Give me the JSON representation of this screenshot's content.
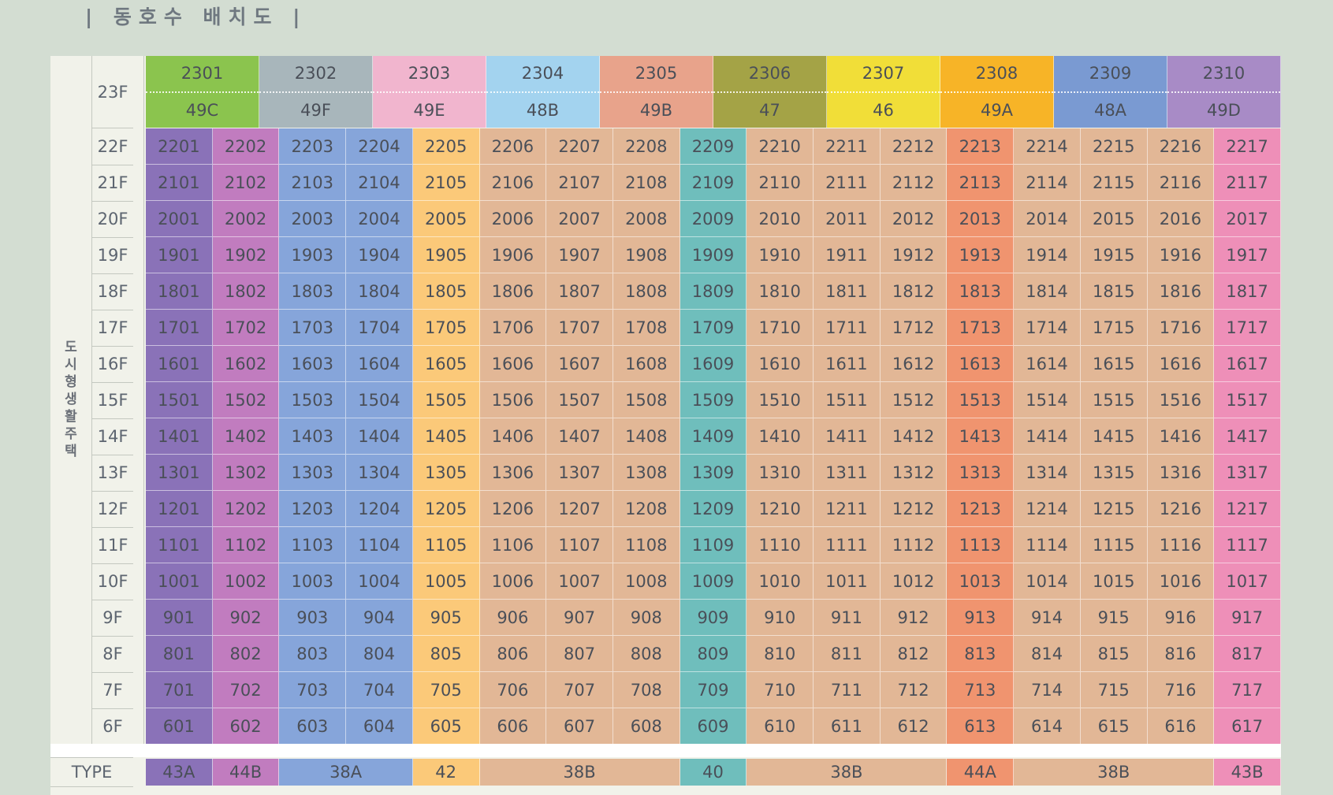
{
  "title": "| 동호수 배치도 |",
  "side_label": [
    "도",
    "시",
    "형",
    "생",
    "활",
    "주",
    "택"
  ],
  "colors": {
    "purple": "#8a72b8",
    "magenta": "#c17cbf",
    "blue": "#86a5da",
    "yellow": "#fbc979",
    "tan": "#e2b796",
    "teal": "#6fbebc",
    "orange": "#f0946f",
    "pink": "#ee8fb8",
    "green": "#8bc44e",
    "gray": "#a8b6bb",
    "lightpink": "#f1b5ce",
    "lightblue": "#a3d3ef",
    "salmon": "#e8a38b",
    "olive": "#a4a346",
    "gold": "#f1de38",
    "amber": "#f7b427",
    "steel": "#7a9ad2",
    "violet": "#a88bc6"
  },
  "top": {
    "floor": "23F",
    "units": [
      {
        "num": "2301",
        "type": "49C",
        "color": "#8bc44e"
      },
      {
        "num": "2302",
        "type": "49F",
        "color": "#a8b6bb"
      },
      {
        "num": "2303",
        "type": "49E",
        "color": "#f1b5ce"
      },
      {
        "num": "2304",
        "type": "48B",
        "color": "#a3d3ef"
      },
      {
        "num": "2305",
        "type": "49B",
        "color": "#e8a38b"
      },
      {
        "num": "2306",
        "type": "47",
        "color": "#a4a346"
      },
      {
        "num": "2307",
        "type": "46",
        "color": "#f1de38"
      },
      {
        "num": "2308",
        "type": "49A",
        "color": "#f7b427"
      },
      {
        "num": "2309",
        "type": "48A",
        "color": "#7a9ad2"
      },
      {
        "num": "2310",
        "type": "49D",
        "color": "#a88bc6"
      }
    ]
  },
  "floors": [
    "22F",
    "21F",
    "20F",
    "19F",
    "18F",
    "17F",
    "16F",
    "15F",
    "14F",
    "13F",
    "12F",
    "11F",
    "10F",
    "9F",
    "8F",
    "7F",
    "6F"
  ],
  "column_colors": [
    "#8a72b8",
    "#c17cbf",
    "#86a5da",
    "#86a5da",
    "#fbc979",
    "#e2b796",
    "#e2b796",
    "#e2b796",
    "#6fbebc",
    "#e2b796",
    "#e2b796",
    "#e2b796",
    "#f0946f",
    "#e2b796",
    "#e2b796",
    "#e2b796",
    "#ee8fb8"
  ],
  "rows": [
    [
      "2201",
      "2202",
      "2203",
      "2204",
      "2205",
      "2206",
      "2207",
      "2208",
      "2209",
      "2210",
      "2211",
      "2212",
      "2213",
      "2214",
      "2215",
      "2216",
      "2217"
    ],
    [
      "2101",
      "2102",
      "2103",
      "2104",
      "2105",
      "2106",
      "2107",
      "2108",
      "2109",
      "2110",
      "2111",
      "2112",
      "2113",
      "2114",
      "2115",
      "2116",
      "2117"
    ],
    [
      "2001",
      "2002",
      "2003",
      "2004",
      "2005",
      "2006",
      "2007",
      "2008",
      "2009",
      "2010",
      "2011",
      "2012",
      "2013",
      "2014",
      "2015",
      "2016",
      "2017"
    ],
    [
      "1901",
      "1902",
      "1903",
      "1904",
      "1905",
      "1906",
      "1907",
      "1908",
      "1909",
      "1910",
      "1911",
      "1912",
      "1913",
      "1914",
      "1915",
      "1916",
      "1917"
    ],
    [
      "1801",
      "1802",
      "1803",
      "1804",
      "1805",
      "1806",
      "1807",
      "1808",
      "1809",
      "1810",
      "1811",
      "1812",
      "1813",
      "1814",
      "1815",
      "1816",
      "1817"
    ],
    [
      "1701",
      "1702",
      "1703",
      "1704",
      "1705",
      "1706",
      "1707",
      "1708",
      "1709",
      "1710",
      "1711",
      "1712",
      "1713",
      "1714",
      "1715",
      "1716",
      "1717"
    ],
    [
      "1601",
      "1602",
      "1603",
      "1604",
      "1605",
      "1606",
      "1607",
      "1608",
      "1609",
      "1610",
      "1611",
      "1612",
      "1613",
      "1614",
      "1615",
      "1616",
      "1617"
    ],
    [
      "1501",
      "1502",
      "1503",
      "1504",
      "1505",
      "1506",
      "1507",
      "1508",
      "1509",
      "1510",
      "1511",
      "1512",
      "1513",
      "1514",
      "1515",
      "1516",
      "1517"
    ],
    [
      "1401",
      "1402",
      "1403",
      "1404",
      "1405",
      "1406",
      "1407",
      "1408",
      "1409",
      "1410",
      "1411",
      "1412",
      "1413",
      "1414",
      "1415",
      "1416",
      "1417"
    ],
    [
      "1301",
      "1302",
      "1303",
      "1304",
      "1305",
      "1306",
      "1307",
      "1308",
      "1309",
      "1310",
      "1311",
      "1312",
      "1313",
      "1314",
      "1315",
      "1316",
      "1317"
    ],
    [
      "1201",
      "1202",
      "1203",
      "1204",
      "1205",
      "1206",
      "1207",
      "1208",
      "1209",
      "1210",
      "1211",
      "1212",
      "1213",
      "1214",
      "1215",
      "1216",
      "1217"
    ],
    [
      "1101",
      "1102",
      "1103",
      "1104",
      "1105",
      "1106",
      "1107",
      "1108",
      "1109",
      "1110",
      "1111",
      "1112",
      "1113",
      "1114",
      "1115",
      "1116",
      "1117"
    ],
    [
      "1001",
      "1002",
      "1003",
      "1004",
      "1005",
      "1006",
      "1007",
      "1008",
      "1009",
      "1010",
      "1011",
      "1012",
      "1013",
      "1014",
      "1015",
      "1016",
      "1017"
    ],
    [
      "901",
      "902",
      "903",
      "904",
      "905",
      "906",
      "907",
      "908",
      "909",
      "910",
      "911",
      "912",
      "913",
      "914",
      "915",
      "916",
      "917"
    ],
    [
      "801",
      "802",
      "803",
      "804",
      "805",
      "806",
      "807",
      "808",
      "809",
      "810",
      "811",
      "812",
      "813",
      "814",
      "815",
      "816",
      "817"
    ],
    [
      "701",
      "702",
      "703",
      "704",
      "705",
      "706",
      "707",
      "708",
      "709",
      "710",
      "711",
      "712",
      "713",
      "714",
      "715",
      "716",
      "717"
    ],
    [
      "601",
      "602",
      "603",
      "604",
      "605",
      "606",
      "607",
      "608",
      "609",
      "610",
      "611",
      "612",
      "613",
      "614",
      "615",
      "616",
      "617"
    ]
  ],
  "type_row": {
    "label": "TYPE",
    "groups": [
      {
        "label": "43A",
        "span": 1,
        "color": "#8a72b8"
      },
      {
        "label": "44B",
        "span": 1,
        "color": "#c17cbf"
      },
      {
        "label": "38A",
        "span": 2,
        "color": "#86a5da"
      },
      {
        "label": "42",
        "span": 1,
        "color": "#fbc979"
      },
      {
        "label": "38B",
        "span": 3,
        "color": "#e2b796"
      },
      {
        "label": "40",
        "span": 1,
        "color": "#6fbebc"
      },
      {
        "label": "38B",
        "span": 3,
        "color": "#e2b796"
      },
      {
        "label": "44A",
        "span": 1,
        "color": "#f0946f"
      },
      {
        "label": "38B",
        "span": 3,
        "color": "#e2b796"
      },
      {
        "label": "43B",
        "span": 1,
        "color": "#ee8fb8"
      }
    ]
  }
}
